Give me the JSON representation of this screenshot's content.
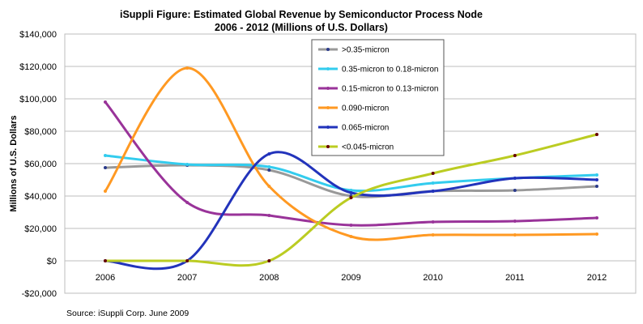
{
  "chart_data": {
    "type": "line",
    "title": "iSuppli Figure: Estimated Global Revenue by Semiconductor Process Node",
    "subtitle": "2006 - 2012 (Millions of U.S. Dollars)",
    "xlabel": "",
    "ylabel": "Millions of U.S. Dollars",
    "source": "Source: iSuppli Corp. June 2009",
    "categories": [
      "2006",
      "2007",
      "2008",
      "2009",
      "2010",
      "2011",
      "2012"
    ],
    "ylim": [
      -20000,
      140000
    ],
    "yticks": [
      -20000,
      0,
      20000,
      40000,
      60000,
      80000,
      100000,
      120000,
      140000
    ],
    "ytick_labels": [
      "-$20,000",
      "$0",
      "$20,000",
      "$40,000",
      "$60,000",
      "$80,000",
      "$100,000",
      "$120,000",
      "$140,000"
    ],
    "grid": true,
    "smooth": true,
    "legend_position": "top-center",
    "series": [
      {
        "name": ">0.35-micron",
        "color": "#999999",
        "marker_color": "#2a3a8a",
        "values": [
          57500,
          59000,
          56000,
          40000,
          43000,
          43500,
          46000
        ]
      },
      {
        "name": "0.35-micron to 0.18-micron",
        "color": "#33ccee",
        "marker_color": "#33ccee",
        "values": [
          65000,
          59500,
          58000,
          43500,
          48000,
          51000,
          53000
        ]
      },
      {
        "name": "0.15-micron to 0.13-micron",
        "color": "#993399",
        "marker_color": "#993399",
        "values": [
          98000,
          36000,
          28000,
          22000,
          24000,
          24500,
          26500
        ]
      },
      {
        "name": "0.090-micron",
        "color": "#ff9922",
        "marker_color": "#ff9922",
        "values": [
          43000,
          119000,
          46000,
          15000,
          16000,
          16000,
          16500
        ]
      },
      {
        "name": "0.065-micron",
        "color": "#2233bb",
        "marker_color": "#2233bb",
        "values": [
          0,
          0,
          66000,
          42000,
          43000,
          51000,
          50000
        ]
      },
      {
        "name": "<0.045-micron",
        "color": "#bbcc22",
        "marker_color": "#660000",
        "values": [
          0,
          0,
          0,
          39000,
          54000,
          65000,
          78000
        ]
      }
    ]
  }
}
